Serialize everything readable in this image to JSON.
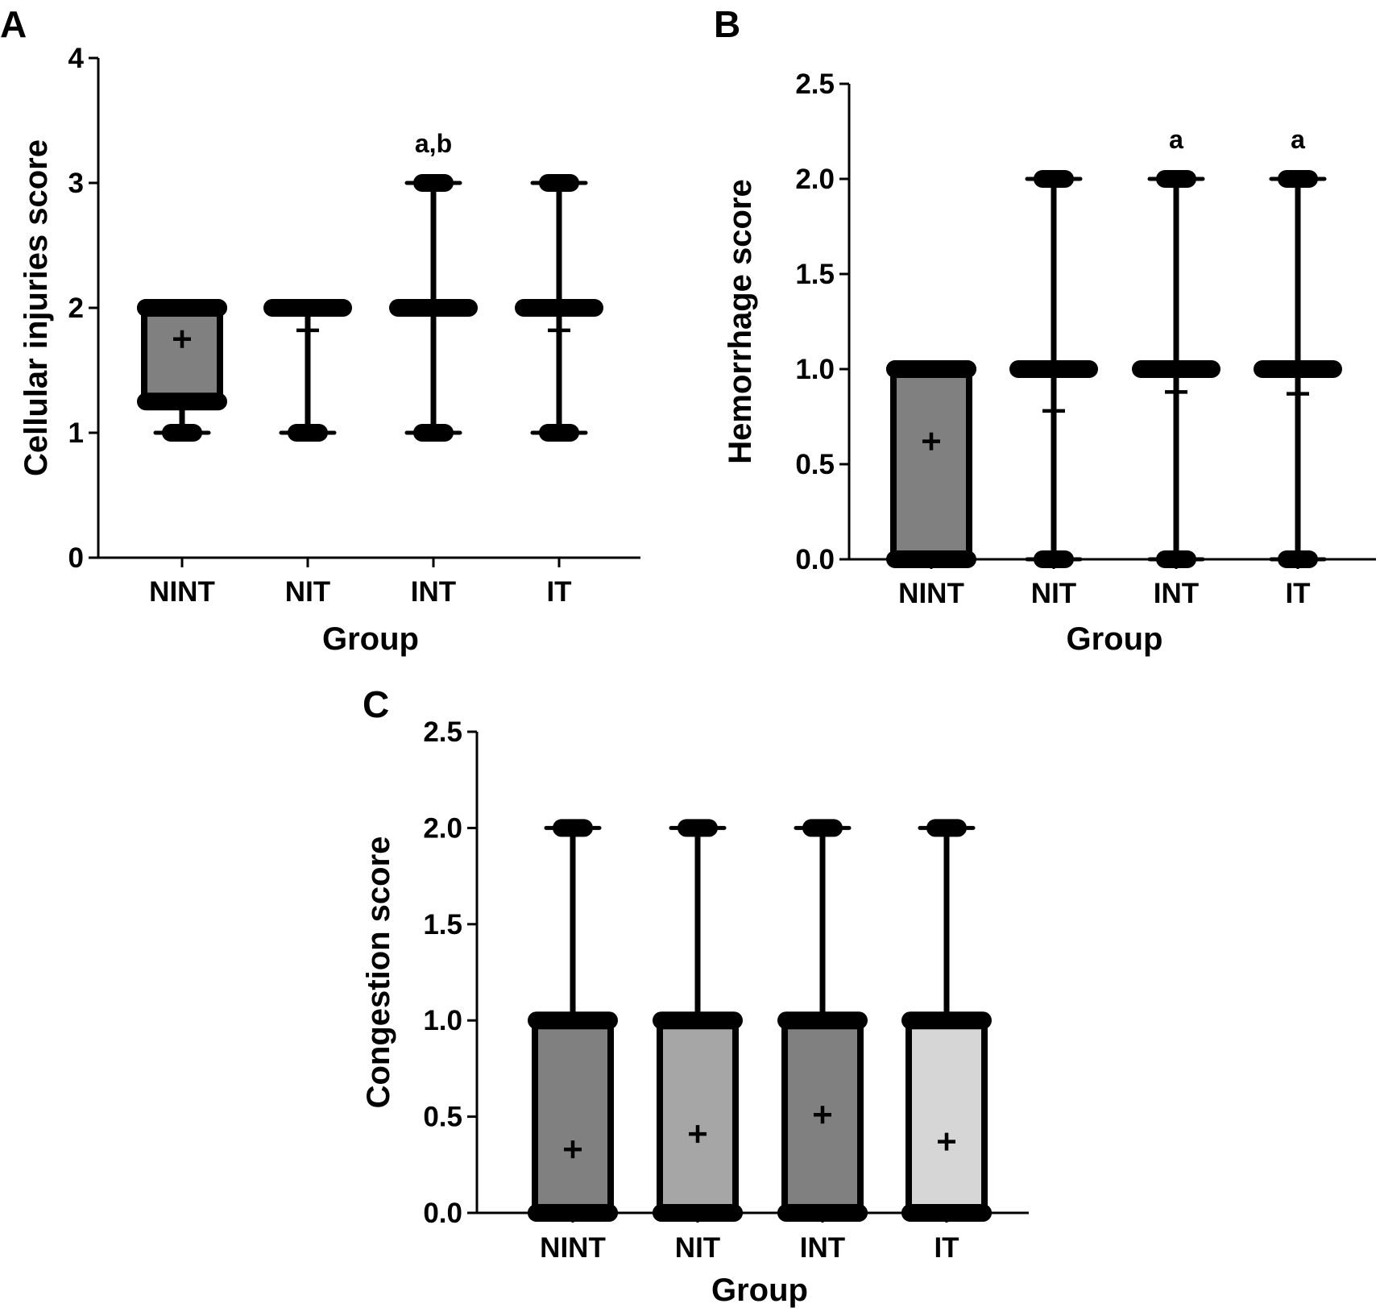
{
  "chart_data": [
    {
      "panel": "A",
      "type": "box",
      "xlabel": "Group",
      "ylabel": "Cellular injuries score",
      "ylim": [
        0,
        4
      ],
      "yticks": [
        "0",
        "1",
        "2",
        "3",
        "4"
      ],
      "categories": [
        "NINT",
        "NIT",
        "INT",
        "IT"
      ],
      "boxes": [
        {
          "min": 1,
          "q1": 1.25,
          "median": 2,
          "q3": 2,
          "max": 2,
          "mean": 1.75,
          "fill": "#808080",
          "annotation": ""
        },
        {
          "min": 1,
          "q1": 2,
          "median": 2,
          "q3": 2,
          "max": 2,
          "mean": 1.82,
          "fill": "#808080",
          "annotation": ""
        },
        {
          "min": 1,
          "q1": 2,
          "median": 2,
          "q3": 2,
          "max": 3,
          "mean": 2.0,
          "fill": "#808080",
          "annotation": "a,b"
        },
        {
          "min": 1,
          "q1": 2,
          "median": 2,
          "q3": 2,
          "max": 3,
          "mean": 1.82,
          "fill": "#808080",
          "annotation": ""
        }
      ]
    },
    {
      "panel": "B",
      "type": "box",
      "xlabel": "Group",
      "ylabel": "Hemorrhage score",
      "ylim": [
        0,
        2.5
      ],
      "yticks": [
        "0.0",
        "0.5",
        "1.0",
        "1.5",
        "2.0",
        "2.5"
      ],
      "categories": [
        "NINT",
        "NIT",
        "INT",
        "IT"
      ],
      "boxes": [
        {
          "min": 0,
          "q1": 0,
          "median": 1,
          "q3": 1,
          "max": 1,
          "mean": 0.62,
          "fill": "#808080",
          "annotation": ""
        },
        {
          "min": 0,
          "q1": 1,
          "median": 1,
          "q3": 1,
          "max": 2,
          "mean": 0.78,
          "fill": "#808080",
          "annotation": ""
        },
        {
          "min": 0,
          "q1": 1,
          "median": 1,
          "q3": 1,
          "max": 2,
          "mean": 0.88,
          "fill": "#808080",
          "annotation": "a"
        },
        {
          "min": 0,
          "q1": 1,
          "median": 1,
          "q3": 1,
          "max": 2,
          "mean": 0.87,
          "fill": "#808080",
          "annotation": "a"
        }
      ]
    },
    {
      "panel": "C",
      "type": "box",
      "xlabel": "Group",
      "ylabel": "Congestion score",
      "ylim": [
        0,
        2.5
      ],
      "yticks": [
        "0.0",
        "0.5",
        "1.0",
        "1.5",
        "2.0",
        "2.5"
      ],
      "categories": [
        "NINT",
        "NIT",
        "INT",
        "IT"
      ],
      "boxes": [
        {
          "min": 0,
          "q1": 0,
          "median": 0,
          "q3": 1,
          "max": 2,
          "mean": 0.33,
          "fill": "#808080",
          "annotation": ""
        },
        {
          "min": 0,
          "q1": 0,
          "median": 0,
          "q3": 1,
          "max": 2,
          "mean": 0.41,
          "fill": "#a6a6a6",
          "annotation": ""
        },
        {
          "min": 0,
          "q1": 0,
          "median": 0,
          "q3": 1,
          "max": 2,
          "mean": 0.51,
          "fill": "#808080",
          "annotation": ""
        },
        {
          "min": 0,
          "q1": 0,
          "median": 0,
          "q3": 1,
          "max": 2,
          "mean": 0.37,
          "fill": "#d6d6d6",
          "annotation": ""
        }
      ]
    }
  ]
}
